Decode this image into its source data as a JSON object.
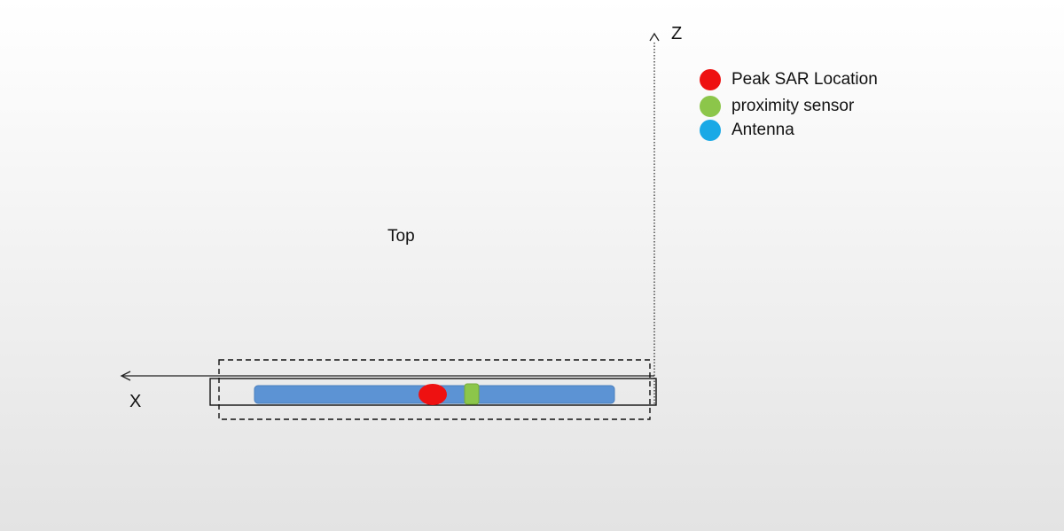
{
  "labels": {
    "z_axis": "Z",
    "x_axis": "X",
    "top": "Top"
  },
  "legend": [
    {
      "label": "Peak SAR Location",
      "color": "#ee1111"
    },
    {
      "label": "proximity sensor",
      "color": "#8cc64a"
    },
    {
      "label": "Antenna",
      "color": "#19a9e6"
    }
  ],
  "colors": {
    "antenna_bar": "#5c93d4",
    "peak_sar": "#ee1111",
    "proximity_sensor": "#8cc64a",
    "outline": "#111111"
  }
}
